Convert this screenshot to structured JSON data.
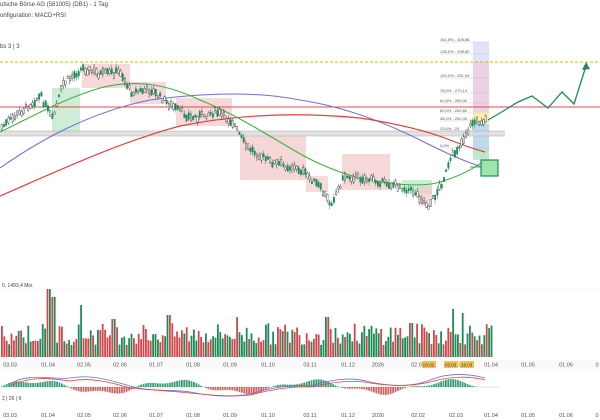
{
  "header": {
    "title": "utsche Börse AG (581005) (DB1) - 1 Tag",
    "bands": "bs 3 | 3",
    "config": "onfiguration: MACD+RSI"
  },
  "volume_label": "0, 1493,4 Mio.",
  "macd_label": "2 | 26 | 9",
  "fib_labels": [
    "161,8% - 308,88",
    "138,2% - 298,80",
    "100,0% - 281,94",
    "78,6% - 270,14",
    "61,8% - 265,30",
    "50,0% - 262,80",
    "38,2% - 252,40",
    "23,6% - 24",
    "0,0%"
  ],
  "date_labels": [
    "03.03",
    "01.04",
    "02.05",
    "02.06",
    "01.07",
    "01.08",
    "01.09",
    "01.10",
    "03.11",
    "01.12",
    "2026",
    "02.02",
    "02.03",
    "01.04",
    "01.05",
    "01.06",
    "0"
  ],
  "mid_date_labels": [
    "03.03",
    "01.04",
    "02.05",
    "02.06",
    "01.07",
    "01.08",
    "01.09",
    "01.10",
    "03.11",
    "01.12",
    "2026",
    "02.02",
    "02.03",
    "01.04",
    "01.05",
    "01.06",
    "0"
  ],
  "markers": {
    "m1": "03.02",
    "m2": "03.03",
    "m3": "18.03"
  },
  "colors": {
    "up": "#1e8c5a",
    "down": "#d0484b",
    "sma_green": "#3db33d",
    "sma_red": "#e0433e",
    "sma_blue": "#6f6fd6",
    "projection": "#1e8c5a",
    "resist_line": "#e24a4a",
    "dotted_line": "#e5b400"
  }
}
